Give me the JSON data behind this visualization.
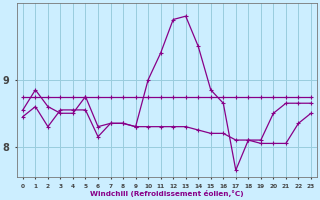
{
  "xlabel": "Windchill (Refroidissement éolien,°C)",
  "background_color": "#cceeff",
  "grid_color": "#99ccdd",
  "line_color": "#880088",
  "x_ticks": [
    0,
    1,
    2,
    3,
    4,
    5,
    6,
    7,
    8,
    9,
    10,
    11,
    12,
    13,
    14,
    15,
    16,
    17,
    18,
    19,
    20,
    21,
    22,
    23
  ],
  "y_ticks": [
    8,
    9
  ],
  "ylim": [
    7.55,
    10.15
  ],
  "xlim": [
    -0.5,
    23.5
  ],
  "series1": [
    8.75,
    8.75,
    8.75,
    8.75,
    8.75,
    8.75,
    8.75,
    8.75,
    8.75,
    8.75,
    8.75,
    8.75,
    8.75,
    8.75,
    8.75,
    8.75,
    8.75,
    8.75,
    8.75,
    8.75,
    8.75,
    8.75,
    8.75,
    8.75
  ],
  "series2": [
    8.55,
    8.85,
    8.6,
    8.5,
    8.5,
    8.75,
    8.3,
    8.35,
    8.35,
    8.3,
    9.0,
    9.4,
    9.9,
    9.95,
    9.5,
    8.85,
    8.65,
    7.65,
    8.1,
    8.1,
    8.5,
    8.65,
    8.65,
    8.65
  ],
  "series3": [
    8.45,
    8.6,
    8.3,
    8.55,
    8.55,
    8.55,
    8.15,
    8.35,
    8.35,
    8.3,
    8.3,
    8.3,
    8.3,
    8.3,
    8.25,
    8.2,
    8.2,
    8.1,
    8.1,
    8.05,
    8.05,
    8.05,
    8.35,
    8.5
  ]
}
